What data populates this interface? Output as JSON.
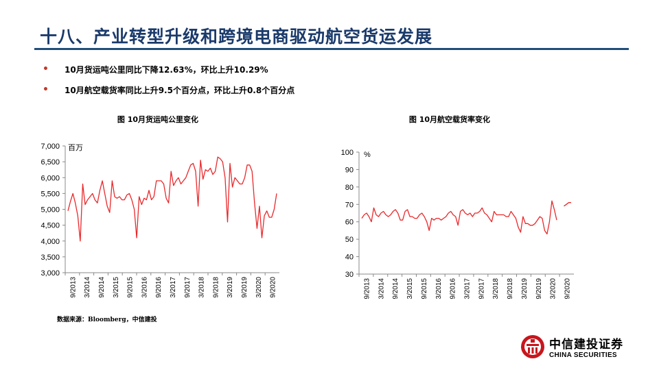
{
  "slide": {
    "title": "十八、产业转型升级和跨境电商驱动航空货运发展",
    "bullets": [
      "10月货运吨公里同比下降12.63%，环比上升10.29%",
      "10月航空载货率同比上升9.5个百分点，环比上升0.8个百分点"
    ],
    "source": "数据来源：Bloomberg，中信建投",
    "logo": {
      "cn": "中信建投证券",
      "en": "CHINA SECURITIES"
    }
  },
  "colors": {
    "title": "#1a3a6b",
    "rule": "#1f4e79",
    "series": "#e8282b",
    "bullet": "#c0392b"
  },
  "chart_data": [
    {
      "type": "line",
      "title": "图 10月货运吨公里变化",
      "unit_label": "百万",
      "ylim": [
        3000,
        7000
      ],
      "y_ticks": [
        "3,000",
        "3,500",
        "4,000",
        "4,500",
        "5,000",
        "5,500",
        "6,000",
        "6,500",
        "7,000"
      ],
      "x_tick_labels": [
        "9/2013",
        "3/2014",
        "9/2014",
        "3/2015",
        "9/2015",
        "3/2016",
        "9/2016",
        "3/2017",
        "9/2017",
        "3/2018",
        "9/2018",
        "3/2019",
        "9/2019",
        "3/2020",
        "9/2020"
      ],
      "grid": false,
      "series": [
        {
          "name": "",
          "values": [
            4950,
            5250,
            5500,
            5200,
            4800,
            4000,
            5800,
            5150,
            5300,
            5400,
            5500,
            5300,
            5200,
            5600,
            5900,
            5500,
            5100,
            4900,
            5900,
            5400,
            5350,
            5400,
            5300,
            5300,
            5450,
            5500,
            5300,
            5000,
            4100,
            5400,
            5150,
            5350,
            5300,
            5600,
            5300,
            5400,
            5900,
            5900,
            5900,
            5800,
            5350,
            5200,
            6200,
            5750,
            5900,
            6000,
            5800,
            5900,
            6000,
            6200,
            6400,
            6450,
            6200,
            5100,
            6550,
            5950,
            6250,
            6200,
            6300,
            6100,
            6200,
            6650,
            6600,
            6500,
            6000,
            4600,
            6450,
            5700,
            6000,
            5900,
            5800,
            5800,
            6000,
            6400,
            6400,
            6200,
            5200,
            4400,
            5100,
            4100,
            4800,
            4950,
            4750,
            4750,
            5000,
            5500
          ]
        }
      ]
    },
    {
      "type": "line",
      "title": "图 10月航空载货率变化",
      "unit_label": "%",
      "ylim": [
        30,
        100
      ],
      "y_ticks": [
        "30",
        "40",
        "50",
        "60",
        "70",
        "80",
        "90",
        "100"
      ],
      "x_tick_labels": [
        "9/2013",
        "3/2014",
        "9/2014",
        "3/2015",
        "9/2015",
        "3/2016",
        "9/2016",
        "3/2017",
        "9/2017",
        "3/2018",
        "9/2018",
        "3/2019",
        "9/2019",
        "3/2020",
        "9/2020"
      ],
      "grid": false,
      "series": [
        {
          "name": "",
          "values": [
            62,
            64,
            65,
            63,
            60,
            68,
            64,
            63,
            65,
            66,
            64,
            63,
            64,
            66,
            67,
            65,
            61,
            61,
            66,
            67,
            63,
            63,
            62,
            62,
            64,
            65,
            63,
            60,
            55,
            62,
            61,
            62,
            62,
            61,
            62,
            63,
            65,
            66,
            64,
            63,
            58,
            66,
            67,
            65,
            64,
            65,
            63,
            65,
            65,
            66,
            68,
            65,
            64,
            62,
            60,
            66,
            64,
            64,
            64,
            64,
            63,
            63,
            66,
            64,
            62,
            57,
            54,
            63,
            59,
            59,
            58,
            58,
            59,
            61,
            63,
            62,
            55,
            53,
            60,
            72,
            67,
            61,
            null,
            null,
            69,
            70,
            71,
            71
          ]
        }
      ]
    }
  ]
}
